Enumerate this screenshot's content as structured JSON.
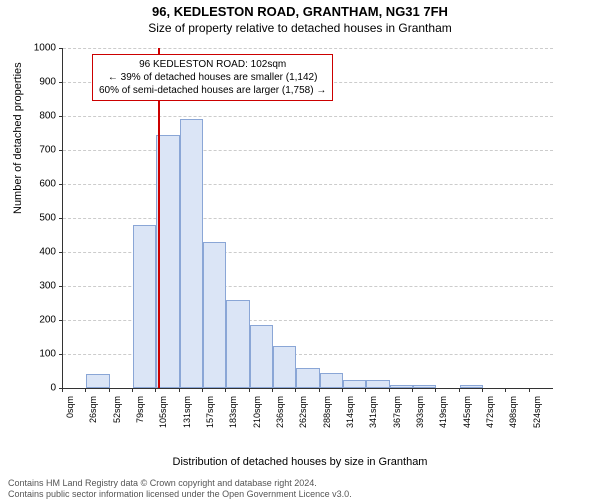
{
  "header": {
    "address": "96, KEDLESTON ROAD, GRANTHAM, NG31 7FH",
    "subtitle": "Size of property relative to detached houses in Grantham"
  },
  "chart": {
    "type": "histogram",
    "ylabel": "Number of detached properties",
    "xlabel": "Distribution of detached houses by size in Grantham",
    "ylim": [
      0,
      1000
    ],
    "ytick_step": 100,
    "yticks": [
      0,
      100,
      200,
      300,
      400,
      500,
      600,
      700,
      800,
      900,
      1000
    ],
    "xticks": [
      "0sqm",
      "26sqm",
      "52sqm",
      "79sqm",
      "105sqm",
      "131sqm",
      "157sqm",
      "183sqm",
      "210sqm",
      "236sqm",
      "262sqm",
      "288sqm",
      "314sqm",
      "341sqm",
      "367sqm",
      "393sqm",
      "419sqm",
      "445sqm",
      "472sqm",
      "498sqm",
      "524sqm"
    ],
    "values": [
      0,
      40,
      0,
      480,
      745,
      790,
      430,
      260,
      185,
      125,
      60,
      45,
      25,
      25,
      10,
      10,
      0,
      8,
      0,
      0,
      0
    ],
    "bar_color": "#dbe5f6",
    "bar_border_color": "#8aa6d6",
    "grid_color": "#cccccc",
    "background_color": "#ffffff",
    "marker": {
      "value_sqm": 102,
      "color": "#cc0000"
    },
    "annotation": {
      "line1": "96 KEDLESTON ROAD: 102sqm",
      "line2": "← 39% of detached houses are smaller (1,142)",
      "line3": "60% of semi-detached houses are larger (1,758) →"
    }
  },
  "footer": {
    "line1": "Contains HM Land Registry data © Crown copyright and database right 2024.",
    "line2": "Contains public sector information licensed under the Open Government Licence v3.0."
  }
}
